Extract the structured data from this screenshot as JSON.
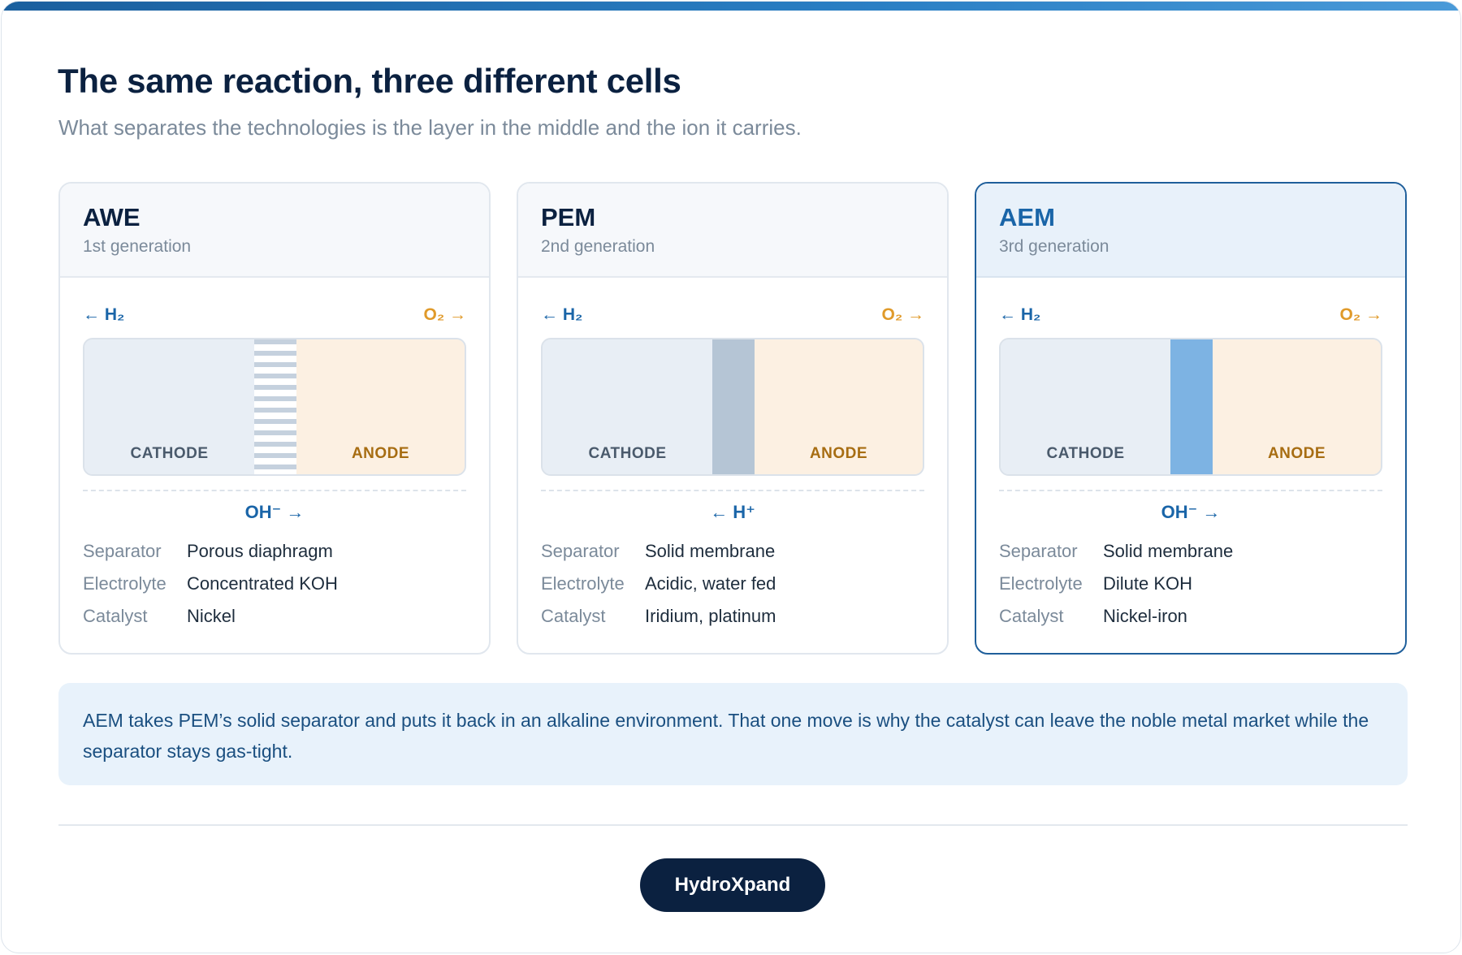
{
  "header": {
    "title": "The same reaction, three different cells",
    "subtitle": "What separates the technologies is the layer in the middle and the ion it carries."
  },
  "cards": [
    {
      "name": "AWE",
      "generation": "1st generation",
      "h2_flow": "← H₂",
      "o2_flow": "O₂ →",
      "cathode_label": "CATHODE",
      "anode_label": "ANODE",
      "separator_style": "porous",
      "ion": "OH⁻ →",
      "specs": [
        {
          "key": "Separator",
          "value": "Porous diaphragm"
        },
        {
          "key": "Electrolyte",
          "value": "Concentrated KOH"
        },
        {
          "key": "Catalyst",
          "value": "Nickel"
        }
      ]
    },
    {
      "name": "PEM",
      "generation": "2nd generation",
      "h2_flow": "← H₂",
      "o2_flow": "O₂ →",
      "cathode_label": "CATHODE",
      "anode_label": "ANODE",
      "separator_style": "solid-grey",
      "ion": "← H⁺",
      "specs": [
        {
          "key": "Separator",
          "value": "Solid membrane"
        },
        {
          "key": "Electrolyte",
          "value": "Acidic, water fed"
        },
        {
          "key": "Catalyst",
          "value": "Iridium, platinum"
        }
      ]
    },
    {
      "name": "AEM",
      "generation": "3rd generation",
      "h2_flow": "← H₂",
      "o2_flow": "O₂ →",
      "cathode_label": "CATHODE",
      "anode_label": "ANODE",
      "separator_style": "solid-blue",
      "ion": "OH⁻ →",
      "specs": [
        {
          "key": "Separator",
          "value": "Solid membrane"
        },
        {
          "key": "Electrolyte",
          "value": "Dilute KOH"
        },
        {
          "key": "Catalyst",
          "value": "Nickel-iron"
        }
      ]
    }
  ],
  "note": "AEM takes PEM’s solid separator and puts it back in an alkaline environment. That one move is why the catalyst can leave the noble metal market while the separator stays gas-tight.",
  "brand": "HydroXpand",
  "colors": {
    "accent": "#1a65a8",
    "navy": "#0b2140",
    "oxygen": "#e09a2a",
    "anode_text": "#a76d12",
    "highlight_border": "#1f5f9b"
  }
}
